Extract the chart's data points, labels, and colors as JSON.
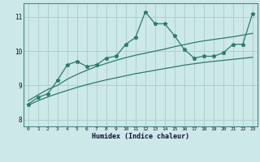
{
  "xlabel": "Humidex (Indice chaleur)",
  "ylabel": "",
  "bg_color": "#cce8e8",
  "grid_color": "#aacccc",
  "line_color": "#2d7a6e",
  "xlim": [
    -0.5,
    23.5
  ],
  "ylim": [
    7.8,
    11.4
  ],
  "xticks": [
    0,
    1,
    2,
    3,
    4,
    5,
    6,
    7,
    8,
    9,
    10,
    11,
    12,
    13,
    14,
    15,
    16,
    17,
    18,
    19,
    20,
    21,
    22,
    23
  ],
  "yticks": [
    8,
    9,
    10,
    11
  ],
  "series1_x": [
    0,
    1,
    2,
    3,
    4,
    5,
    6,
    7,
    8,
    9,
    10,
    11,
    12,
    13,
    14,
    15,
    16,
    17,
    18,
    19,
    20,
    21,
    22,
    23
  ],
  "series1_y": [
    8.45,
    8.65,
    8.75,
    9.15,
    9.6,
    9.7,
    9.55,
    9.6,
    9.8,
    9.85,
    10.2,
    10.4,
    11.15,
    10.8,
    10.8,
    10.45,
    10.05,
    9.8,
    9.85,
    9.85,
    9.95,
    10.2,
    10.2,
    11.1
  ],
  "series2_x": [
    0,
    1,
    2,
    3,
    4,
    5,
    6,
    7,
    8,
    9,
    10,
    11,
    12,
    13,
    14,
    15,
    16,
    17,
    18,
    19,
    20,
    21,
    22,
    23
  ],
  "series2_y": [
    8.55,
    8.72,
    8.88,
    9.0,
    9.18,
    9.32,
    9.44,
    9.55,
    9.64,
    9.73,
    9.81,
    9.88,
    9.94,
    10.0,
    10.06,
    10.13,
    10.19,
    10.25,
    10.3,
    10.34,
    10.38,
    10.42,
    10.47,
    10.52
  ],
  "series3_x": [
    0,
    1,
    2,
    3,
    4,
    5,
    6,
    7,
    8,
    9,
    10,
    11,
    12,
    13,
    14,
    15,
    16,
    17,
    18,
    19,
    20,
    21,
    22,
    23
  ],
  "series3_y": [
    8.42,
    8.55,
    8.66,
    8.76,
    8.85,
    8.94,
    9.02,
    9.09,
    9.16,
    9.22,
    9.28,
    9.34,
    9.39,
    9.44,
    9.49,
    9.54,
    9.59,
    9.63,
    9.67,
    9.7,
    9.73,
    9.76,
    9.79,
    9.82
  ]
}
